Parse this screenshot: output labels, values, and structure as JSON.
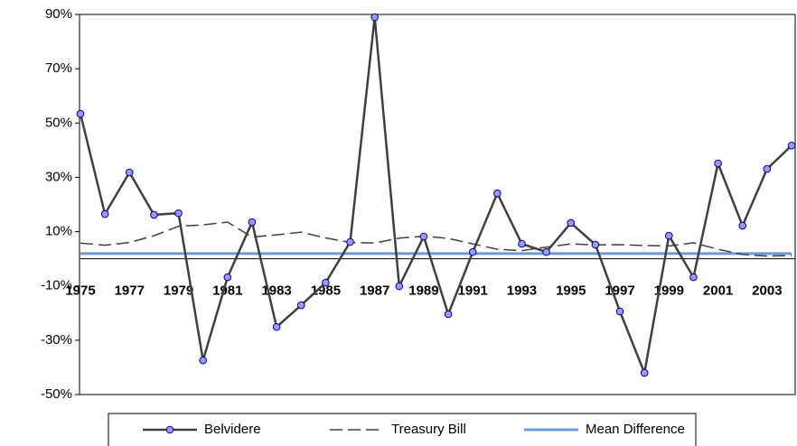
{
  "chart_data": {
    "type": "line",
    "categories": [
      "1975",
      null,
      "1977",
      null,
      "1979",
      null,
      "1981",
      null,
      "1983",
      null,
      "1985",
      null,
      "1987",
      null,
      "1989",
      null,
      "1991",
      null,
      "1993",
      null,
      "1995",
      null,
      "1997",
      null,
      "1999",
      null,
      "2001",
      null,
      "2003",
      null
    ],
    "series": [
      {
        "name": "Belvidere",
        "color": "#404040",
        "marker": true,
        "marker_color": "#9999ff",
        "dashed": false,
        "values": [
          53.4,
          16.5,
          31.8,
          16.2,
          16.8,
          -37.4,
          -6.8,
          13.5,
          -25.1,
          -17.1,
          -8.8,
          6.2,
          89,
          -10.1,
          8.2,
          -20.4,
          2.5,
          24.1,
          5.5,
          2.5,
          13.2,
          5.2,
          -19.4,
          -42,
          8.5,
          -6.8,
          35.1,
          12.2,
          33.1,
          41.7
        ]
      },
      {
        "name": "Treasury Bill",
        "color": "#404040",
        "marker": false,
        "dashed": true,
        "values": [
          5.8,
          5.0,
          6.0,
          8.5,
          12.0,
          12.5,
          13.5,
          8.0,
          8.8,
          9.8,
          7.7,
          6.0,
          5.8,
          7.6,
          8.3,
          7.5,
          5.5,
          3.5,
          3.0,
          4.3,
          5.5,
          5.1,
          5.2,
          4.9,
          4.7,
          5.9,
          3.5,
          1.6,
          1.0,
          1.2
        ]
      },
      {
        "name": "Mean Difference",
        "color": "#6a9bd8",
        "marker": false,
        "dashed": false,
        "values": [
          1.9,
          1.9,
          1.9,
          1.9,
          1.9,
          1.9,
          1.9,
          1.9,
          1.9,
          1.9,
          1.9,
          1.9,
          1.9,
          1.9,
          1.9,
          1.9,
          1.9,
          1.9,
          1.9,
          1.9,
          1.9,
          1.9,
          1.9,
          1.9,
          1.9,
          1.9,
          1.9,
          1.9,
          1.9,
          1.9
        ]
      }
    ],
    "ylim": [
      -50,
      90
    ],
    "yticks": [
      {
        "value": -50,
        "label": "-50%"
      },
      {
        "value": -30,
        "label": "-30%"
      },
      {
        "value": -10,
        "label": "-10%"
      },
      {
        "value": 10,
        "label": "10%"
      },
      {
        "value": 30,
        "label": "30%"
      },
      {
        "value": 50,
        "label": "50%"
      },
      {
        "value": 70,
        "label": "70%"
      },
      {
        "value": 90,
        "label": "90%"
      }
    ],
    "grid": false,
    "legend": "bottom"
  }
}
